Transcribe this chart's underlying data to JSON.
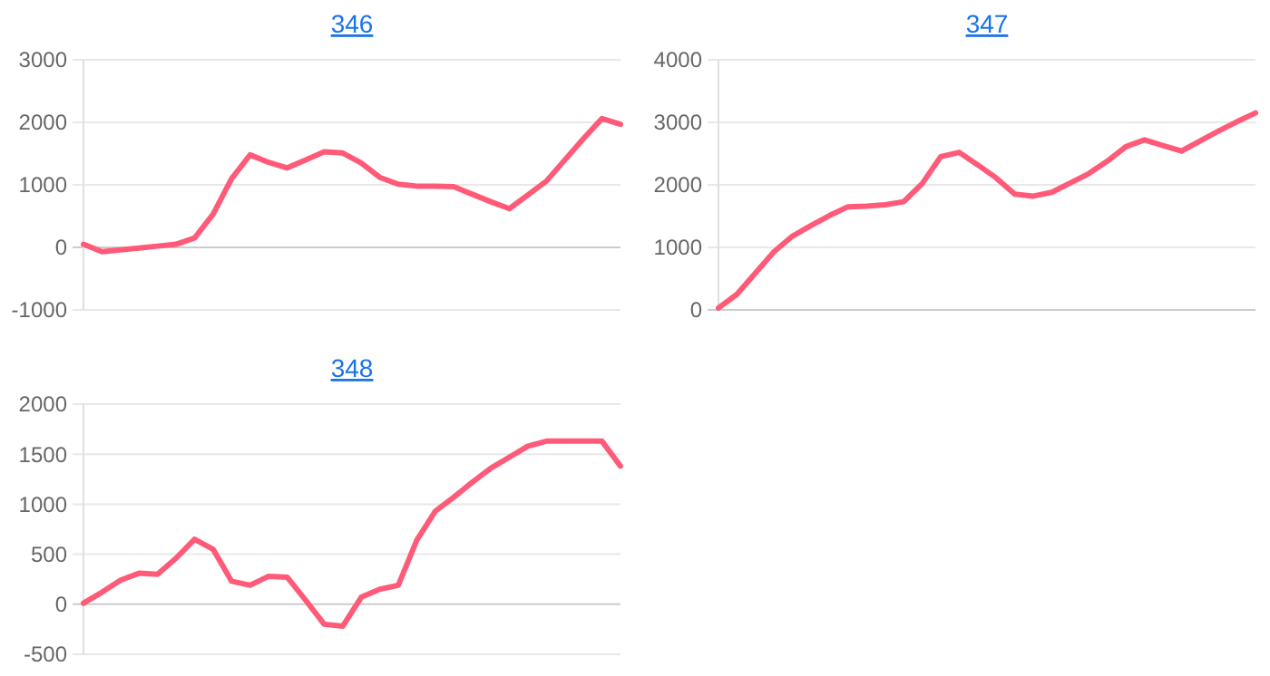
{
  "chart_data": [
    {
      "type": "line",
      "title": "346",
      "categories": [
        null,
        null,
        null,
        null,
        null,
        null,
        null,
        null,
        null,
        null,
        null,
        null,
        null,
        null,
        null,
        null,
        null,
        null,
        null,
        null,
        null,
        null,
        null,
        null,
        null,
        null,
        null,
        null,
        null,
        null
      ],
      "series": [
        {
          "color": "#ff5a78",
          "values": [
            50,
            -70,
            -40,
            -10,
            20,
            50,
            150,
            530,
            1100,
            1480,
            1360,
            1270,
            1400,
            1530,
            1510,
            1350,
            1120,
            1010,
            980,
            980,
            970,
            850,
            730,
            620,
            840,
            1060,
            1400,
            1740,
            2060,
            1970
          ]
        }
      ],
      "ylim": [
        -1000,
        3000
      ],
      "yticks": [
        -1000,
        0,
        1000,
        2000,
        3000
      ],
      "grid": "y",
      "tick_labels": "y",
      "marker": "none"
    },
    {
      "type": "line",
      "title": "347",
      "categories": [
        null,
        null,
        null,
        null,
        null,
        null,
        null,
        null,
        null,
        null,
        null,
        null,
        null,
        null,
        null,
        null,
        null,
        null,
        null,
        null,
        null,
        null,
        null,
        null,
        null,
        null,
        null,
        null,
        null,
        null
      ],
      "series": [
        {
          "color": "#ff5a78",
          "values": [
            30,
            250,
            590,
            930,
            1180,
            1350,
            1510,
            1650,
            1660,
            1680,
            1730,
            2020,
            2450,
            2520,
            2320,
            2110,
            1850,
            1820,
            1880,
            2030,
            2180,
            2380,
            2610,
            2720,
            2630,
            2540,
            2700,
            2860,
            3010,
            3150
          ]
        }
      ],
      "ylim": [
        0,
        4000
      ],
      "yticks": [
        0,
        1000,
        2000,
        3000,
        4000
      ],
      "grid": "y",
      "tick_labels": "y",
      "marker": "none"
    },
    {
      "type": "line",
      "title": "348",
      "categories": [
        null,
        null,
        null,
        null,
        null,
        null,
        null,
        null,
        null,
        null,
        null,
        null,
        null,
        null,
        null,
        null,
        null,
        null,
        null,
        null,
        null,
        null,
        null,
        null,
        null,
        null,
        null,
        null,
        null,
        null
      ],
      "series": [
        {
          "color": "#ff5a78",
          "values": [
            10,
            120,
            240,
            310,
            300,
            460,
            650,
            550,
            230,
            190,
            280,
            270,
            40,
            -200,
            -220,
            70,
            150,
            190,
            640,
            930,
            1070,
            1220,
            1360,
            1470,
            1580,
            1630,
            1630,
            1630,
            1630,
            1380
          ]
        }
      ],
      "ylim": [
        -500,
        2000
      ],
      "yticks": [
        -500,
        0,
        500,
        1000,
        1500,
        2000
      ],
      "grid": "y",
      "tick_labels": "y",
      "marker": "none"
    }
  ]
}
